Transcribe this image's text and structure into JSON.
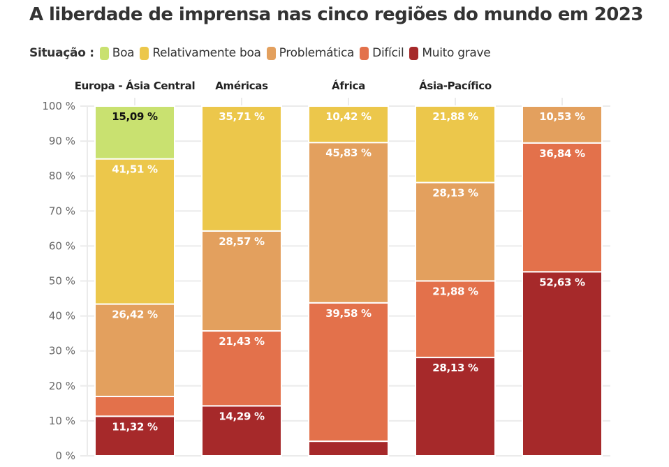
{
  "title": "A liberdade de imprensa nas cinco regiões do mundo em 2023",
  "legend": {
    "title": "Situação :",
    "items": [
      {
        "label": "Boa",
        "color": "#c9e170"
      },
      {
        "label": "Relativamente boa",
        "color": "#ecc74b"
      },
      {
        "label": "Problemática",
        "color": "#e3a05e"
      },
      {
        "label": "Difícil",
        "color": "#e3714b"
      },
      {
        "label": "Muito grave",
        "color": "#a6292a"
      }
    ]
  },
  "chart_data": {
    "type": "bar",
    "stacked": true,
    "title": "A liberdade de imprensa nas cinco regiões do mundo em 2023",
    "categories": [
      "Europa - Ásia Central",
      "Américas",
      "África",
      "Ásia-Pacífico",
      ""
    ],
    "ylim": [
      0,
      100
    ],
    "yticks": [
      0,
      10,
      20,
      30,
      40,
      50,
      60,
      70,
      80,
      90,
      100
    ],
    "ytick_labels": [
      "0 %",
      "10 %",
      "20 %",
      "30 %",
      "40 %",
      "50 %",
      "60 %",
      "70 %",
      "80 %",
      "90 %",
      "100 %"
    ],
    "grid": true,
    "legend_position": "top-left",
    "series": [
      {
        "name": "Muito grave",
        "values": [
          11.32,
          14.29,
          4.17,
          28.13,
          52.63
        ],
        "labels": [
          "11,32 %",
          "14,29 %",
          "",
          "28,13 %",
          "52,63 %"
        ]
      },
      {
        "name": "Difícil",
        "values": [
          5.66,
          21.43,
          39.58,
          21.88,
          36.84
        ],
        "labels": [
          "",
          "21,43 %",
          "39,58 %",
          "21,88 %",
          "36,84 %"
        ]
      },
      {
        "name": "Problemática",
        "values": [
          26.42,
          28.57,
          45.83,
          28.13,
          10.53
        ],
        "labels": [
          "26,42 %",
          "28,57 %",
          "45,83 %",
          "28,13 %",
          "10,53 %"
        ]
      },
      {
        "name": "Relativamente boa",
        "values": [
          41.51,
          35.71,
          10.42,
          21.88,
          0
        ],
        "labels": [
          "41,51 %",
          "35,71 %",
          "10,42 %",
          "21,88 %",
          ""
        ]
      },
      {
        "name": "Boa",
        "values": [
          15.09,
          0,
          0,
          0,
          0
        ],
        "labels": [
          "15,09 %",
          "",
          "",
          "",
          ""
        ]
      }
    ]
  }
}
